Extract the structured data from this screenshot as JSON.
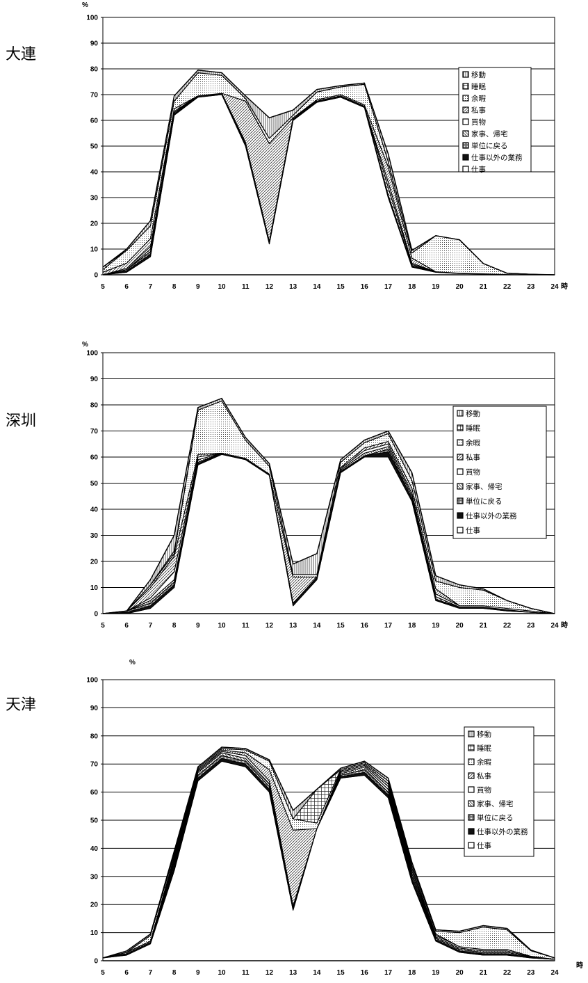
{
  "legend_labels": [
    "移動",
    "睡眠",
    "余暇",
    "私事",
    "買物",
    "家事、帰宅",
    "単位に戻る",
    "仕事以外の業務",
    "仕事"
  ],
  "percent_symbol": "%",
  "hour_suffix": "時",
  "colors": {
    "stroke": "#000000",
    "grid": "#000000",
    "background": "#ffffff"
  },
  "chart_data": [
    {
      "type": "area",
      "city": "大連",
      "x": [
        5,
        6,
        7,
        8,
        9,
        10,
        11,
        12,
        13,
        14,
        15,
        16,
        17,
        18,
        19,
        20,
        21,
        22,
        23,
        24
      ],
      "ylim": [
        0,
        100
      ],
      "yticks": [
        0,
        10,
        20,
        30,
        40,
        50,
        60,
        70,
        80,
        90,
        100
      ],
      "xticks": [
        "5",
        "6",
        "7",
        "8",
        "9",
        "10",
        "11",
        "12",
        "13",
        "14",
        "15",
        "16",
        "17",
        "18",
        "19",
        "20",
        "21",
        "22",
        "23",
        "24"
      ],
      "ylabel": "%",
      "xunit": "時",
      "legend": [
        "移動",
        "睡眠",
        "余暇",
        "私事",
        "買物",
        "家事、帰宅",
        "単位に戻る",
        "仕事以外の業務",
        "仕事"
      ],
      "series": [
        {
          "name": "仕事",
          "values": [
            0,
            1,
            7,
            62,
            69,
            70,
            50,
            12,
            60,
            67,
            69,
            65,
            30,
            3,
            1,
            0.5,
            0.3,
            0.1,
            0,
            0
          ]
        },
        {
          "name": "仕事以外の業務",
          "values": [
            0,
            0.5,
            1,
            0.5,
            0.5,
            0.5,
            1,
            0.5,
            0.5,
            0.5,
            0.5,
            0.5,
            1,
            0.5,
            0.2,
            0.1,
            0.1,
            0,
            0,
            0
          ]
        },
        {
          "name": "単位に戻る",
          "values": [
            0,
            0.5,
            1,
            0,
            0,
            0,
            0,
            0,
            0,
            0,
            0,
            0,
            0,
            0,
            0,
            0,
            0,
            0,
            0,
            0
          ]
        },
        {
          "name": "家事、帰宅",
          "values": [
            0,
            0,
            1,
            0.5,
            0,
            0,
            0,
            0,
            0.5,
            0,
            0,
            0,
            3,
            0.5,
            0,
            0,
            0,
            0,
            0,
            0
          ]
        },
        {
          "name": "買物",
          "values": [
            0,
            0.5,
            1,
            0.5,
            0,
            0,
            0.5,
            0.5,
            0,
            0,
            0,
            0,
            2,
            0.5,
            0,
            0,
            0,
            0,
            0,
            0
          ]
        },
        {
          "name": "私事",
          "values": [
            1,
            2,
            3,
            1,
            0,
            0,
            16,
            38,
            0,
            0.5,
            0.5,
            0.5,
            6,
            2,
            0,
            0,
            0,
            0,
            0,
            0
          ]
        },
        {
          "name": "余暇",
          "values": [
            1,
            5,
            5,
            3,
            9,
            7,
            1,
            2,
            1,
            3,
            3,
            8,
            2,
            2,
            14,
            13,
            4,
            0.5,
            0.2,
            0
          ]
        },
        {
          "name": "睡眠",
          "values": [
            1,
            0,
            0,
            0,
            0,
            0,
            0,
            0,
            0,
            0,
            0,
            0,
            0,
            0,
            0,
            0,
            0,
            0,
            0,
            0
          ]
        },
        {
          "name": "移動",
          "values": [
            0,
            0.5,
            2,
            2,
            1,
            1,
            1,
            8,
            2,
            1,
            0.5,
            0.5,
            3,
            1,
            0,
            0,
            0,
            0,
            0,
            0
          ]
        }
      ]
    },
    {
      "type": "area",
      "city": "深圳",
      "x": [
        5,
        6,
        7,
        8,
        9,
        10,
        11,
        12,
        13,
        14,
        15,
        16,
        17,
        18,
        19,
        20,
        21,
        22,
        23,
        24
      ],
      "ylim": [
        0,
        100
      ],
      "yticks": [
        0,
        10,
        20,
        30,
        40,
        50,
        60,
        70,
        80,
        90,
        100
      ],
      "xticks": [
        "5",
        "6",
        "7",
        "8",
        "9",
        "10",
        "11",
        "12",
        "13",
        "14",
        "15",
        "16",
        "17",
        "18",
        "19",
        "20",
        "21",
        "22",
        "23",
        "24"
      ],
      "ylabel": "%",
      "xunit": "時",
      "legend": [
        "移動",
        "睡眠",
        "余暇",
        "私事",
        "買物",
        "家事、帰宅",
        "単位に戻る",
        "仕事以外の業務",
        "仕事"
      ],
      "series": [
        {
          "name": "仕事",
          "values": [
            0,
            0,
            2,
            10,
            57,
            61,
            59,
            53,
            3,
            13,
            54,
            60,
            60,
            43,
            5,
            2,
            2,
            1,
            0.5,
            0
          ]
        },
        {
          "name": "仕事以外の業務",
          "values": [
            0,
            0.5,
            1,
            1,
            0.5,
            0.5,
            0.5,
            0.5,
            1,
            1,
            0.5,
            0.5,
            2,
            1,
            0.5,
            0.5,
            0.5,
            0.5,
            0,
            0
          ]
        },
        {
          "name": "単位に戻る",
          "values": [
            0,
            0.5,
            1,
            1,
            0.5,
            0,
            0,
            0,
            0,
            0,
            0,
            0,
            1,
            0,
            0,
            0,
            0,
            0,
            0,
            0
          ]
        },
        {
          "name": "家事、帰宅",
          "values": [
            0,
            0,
            1,
            1,
            1,
            0,
            0,
            0,
            0,
            0,
            0.5,
            1,
            1,
            1,
            1,
            0,
            0,
            0,
            0,
            0
          ]
        },
        {
          "name": "買物",
          "values": [
            0,
            0,
            1,
            3,
            1,
            0,
            0,
            0,
            0,
            0,
            0.5,
            1,
            1,
            1,
            1,
            0.5,
            0.5,
            0.5,
            0.5,
            0
          ]
        },
        {
          "name": "私事",
          "values": [
            0,
            0,
            4,
            6,
            1,
            0,
            0,
            0,
            10,
            0,
            0.5,
            1,
            1,
            2,
            2,
            0,
            0,
            0,
            0,
            0
          ]
        },
        {
          "name": "余暇",
          "values": [
            0,
            0,
            1,
            1,
            17,
            20,
            7,
            3,
            1,
            1,
            2,
            2,
            3,
            3,
            3,
            7,
            6,
            3,
            1,
            0
          ]
        },
        {
          "name": "睡眠",
          "values": [
            0,
            0,
            0,
            1,
            0,
            0,
            0,
            0,
            0,
            0,
            0,
            0,
            0,
            0,
            0,
            0,
            0,
            0,
            0,
            0
          ]
        },
        {
          "name": "移動",
          "values": [
            0,
            0,
            2,
            6,
            1,
            1,
            1,
            1,
            4,
            8,
            1,
            1,
            1,
            3,
            2,
            1,
            0.5,
            0,
            0,
            0
          ]
        }
      ]
    },
    {
      "type": "area",
      "city": "天津",
      "x": [
        5,
        6,
        7,
        8,
        9,
        10,
        11,
        12,
        13,
        14,
        15,
        16,
        17,
        18,
        19,
        20,
        21,
        22,
        23,
        24
      ],
      "ylim": [
        0,
        100
      ],
      "yticks": [
        0,
        10,
        20,
        30,
        40,
        50,
        60,
        70,
        80,
        90,
        100
      ],
      "xticks": [
        "5",
        "6",
        "7",
        "8",
        "9",
        "10",
        "11",
        "12",
        "13",
        "14",
        "15",
        "16",
        "17",
        "18",
        "19",
        "20",
        "21",
        "22",
        "23",
        "24"
      ],
      "ylabel": "%",
      "xunit": "時",
      "legend": [
        "移動",
        "睡眠",
        "余暇",
        "私事",
        "買物",
        "家事、帰宅",
        "単位に戻る",
        "仕事以外の業務",
        "仕事"
      ],
      "series": [
        {
          "name": "仕事",
          "values": [
            1,
            2,
            6,
            32,
            64,
            71,
            69,
            60,
            18,
            47,
            65,
            66,
            58,
            28,
            7,
            3,
            2,
            2,
            1,
            0.5
          ]
        },
        {
          "name": "仕事以外の業務",
          "values": [
            0,
            0.5,
            0.5,
            1,
            1,
            1,
            1,
            1,
            0.5,
            0,
            0.5,
            1,
            1,
            1,
            0.5,
            0.5,
            0.5,
            0.5,
            0,
            0
          ]
        },
        {
          "name": "単位に戻る",
          "values": [
            0,
            0.5,
            0.5,
            1,
            1,
            1,
            1,
            1,
            0.5,
            0,
            0.5,
            1,
            1,
            1,
            0.5,
            0.5,
            0.5,
            0.5,
            0.2,
            0
          ]
        },
        {
          "name": "家事、帰宅",
          "values": [
            0,
            0,
            0,
            1,
            1,
            1,
            1,
            1,
            0.5,
            0,
            0.5,
            1,
            1,
            1,
            0.5,
            0.5,
            0.5,
            0.5,
            0.2,
            0
          ]
        },
        {
          "name": "買物",
          "values": [
            0,
            0,
            0,
            1,
            0.5,
            0.5,
            1,
            1,
            0,
            0,
            0.5,
            0.5,
            1,
            1,
            0.5,
            0.5,
            0.5,
            0.5,
            0.2,
            0
          ]
        },
        {
          "name": "私事",
          "values": [
            0,
            0,
            0,
            1,
            0.5,
            0.5,
            1,
            4,
            27,
            0,
            0.5,
            0.5,
            1,
            1,
            0.5,
            0,
            0,
            0,
            0,
            0
          ]
        },
        {
          "name": "余暇",
          "values": [
            0,
            0,
            2,
            1,
            0.5,
            0.5,
            1,
            3,
            4,
            2,
            0.5,
            0.5,
            1,
            1,
            1,
            5,
            8,
            7,
            2,
            0.5
          ]
        },
        {
          "name": "睡眠",
          "values": [
            0,
            0,
            0,
            0,
            0,
            0,
            0,
            0,
            0,
            12,
            0,
            0,
            0,
            0,
            0,
            0,
            0,
            0,
            0,
            0
          ]
        },
        {
          "name": "移動",
          "values": [
            0,
            0.5,
            0.5,
            1,
            0.5,
            0.5,
            0.5,
            0.5,
            3,
            0,
            0.5,
            0.5,
            1,
            1,
            0.5,
            0.5,
            0.5,
            0.5,
            0.2,
            0
          ]
        }
      ]
    }
  ]
}
